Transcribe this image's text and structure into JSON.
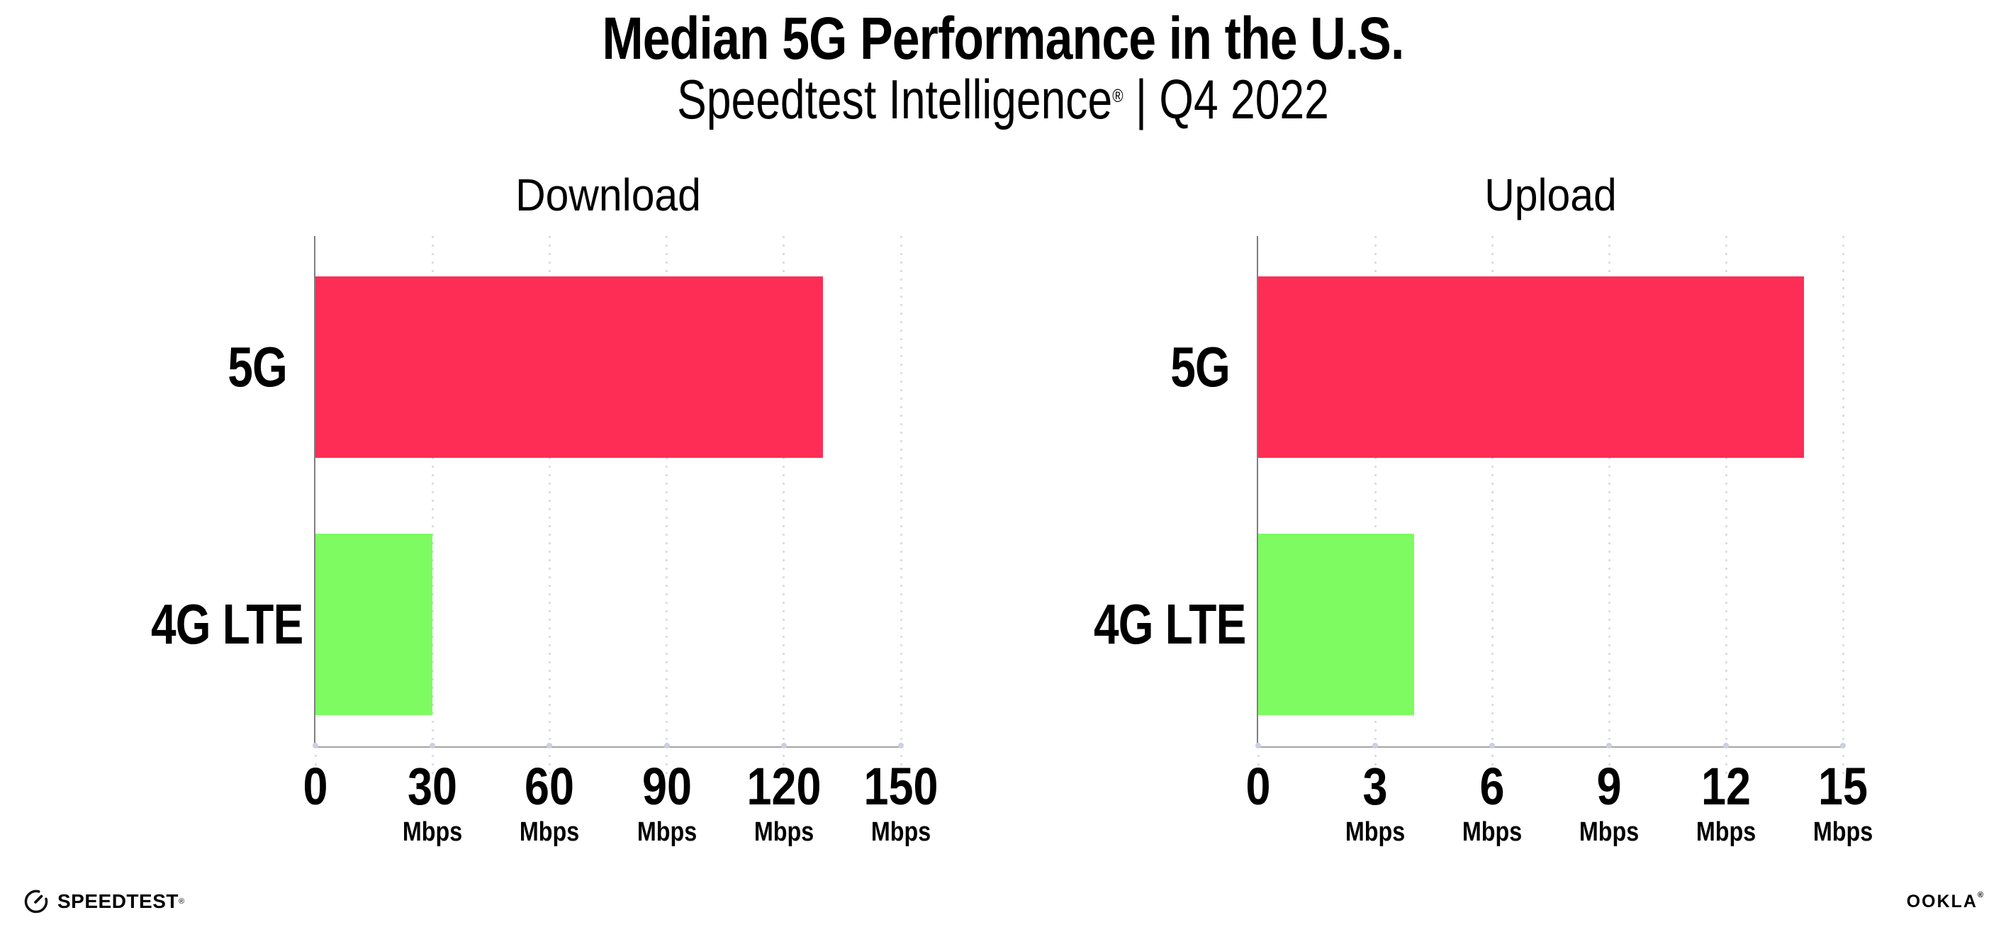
{
  "header": {
    "title": "Median 5G Performance in the U.S.",
    "subtitle_brand": "Speedtest Intelligence",
    "subtitle_registered": "®",
    "subtitle_rest": " | Q4 2022"
  },
  "chart_data": [
    {
      "type": "bar",
      "orientation": "horizontal",
      "title": "Download",
      "categories": [
        "5G",
        "4G LTE"
      ],
      "values": [
        130,
        30
      ],
      "unit": "Mbps",
      "xlim": [
        0,
        150
      ],
      "xticks": [
        0,
        30,
        60,
        90,
        120,
        150
      ],
      "tick_unit_label": "Mbps",
      "bar_colors": [
        "#FE2D55",
        "#7EFB61"
      ],
      "grid": "dotted-vertical",
      "legend": "none"
    },
    {
      "type": "bar",
      "orientation": "horizontal",
      "title": "Upload",
      "categories": [
        "5G",
        "4G LTE"
      ],
      "values": [
        14,
        4
      ],
      "unit": "Mbps",
      "xlim": [
        0,
        15
      ],
      "xticks": [
        0,
        3,
        6,
        9,
        12,
        15
      ],
      "tick_unit_label": "Mbps",
      "bar_colors": [
        "#FE2D55",
        "#7EFB61"
      ],
      "grid": "dotted-vertical",
      "legend": "none"
    }
  ],
  "colors": {
    "bar_5g": "#FE2D55",
    "bar_4g_lte": "#7EFB61",
    "gridline": "#d7d9e6",
    "tick_dot": "#ccd0e2",
    "y_axis": "#7f7f7f",
    "x_axis": "#a3a3a3",
    "text": "#000000",
    "background": "#ffffff"
  },
  "footer": {
    "speedtest": "SPEEDTEST",
    "speedtest_mark": "®",
    "ookla": "OOKLA",
    "ookla_mark": "®"
  }
}
